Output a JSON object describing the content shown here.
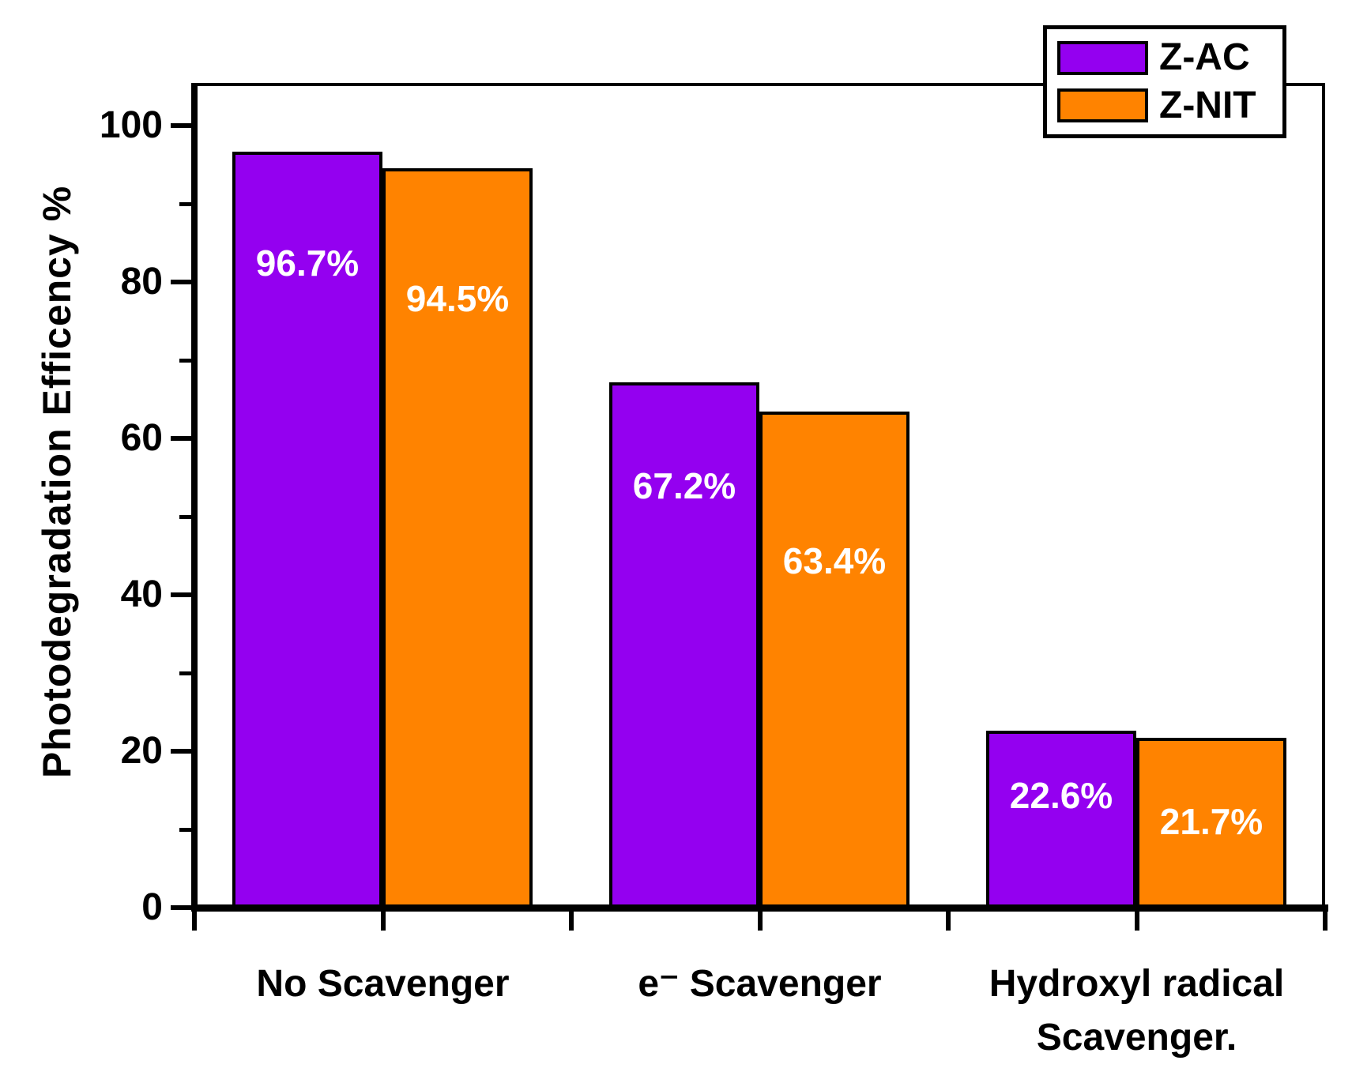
{
  "chart_data": {
    "type": "bar",
    "title": "",
    "ylabel": "Photodegradation Efficency %",
    "xlabel": "",
    "categories": [
      "No Scavenger",
      "e⁻ Scavenger",
      "Hydroxyl radical\nScavenger."
    ],
    "series": [
      {
        "name": "Z-AC",
        "color": "#9400F0",
        "values": [
          96.7,
          67.2,
          22.6
        ],
        "value_labels": [
          "96.7%",
          "67.2%",
          "22.6%"
        ]
      },
      {
        "name": "Z-NIT",
        "color": "#FF8300",
        "values": [
          94.5,
          63.4,
          21.7
        ],
        "value_labels": [
          "94.5%",
          "63.4%",
          "21.7%"
        ]
      }
    ],
    "ylim": [
      0,
      105
    ],
    "yticks_major": [
      100,
      80,
      60,
      40,
      20,
      0
    ],
    "yticks_minor": [
      90,
      70,
      50,
      30,
      10
    ],
    "grid": false,
    "legend_position": "top-right",
    "bar_label_color": "#FFFFFF",
    "bar_border_color": "#000000",
    "axis_color": "#000000"
  }
}
